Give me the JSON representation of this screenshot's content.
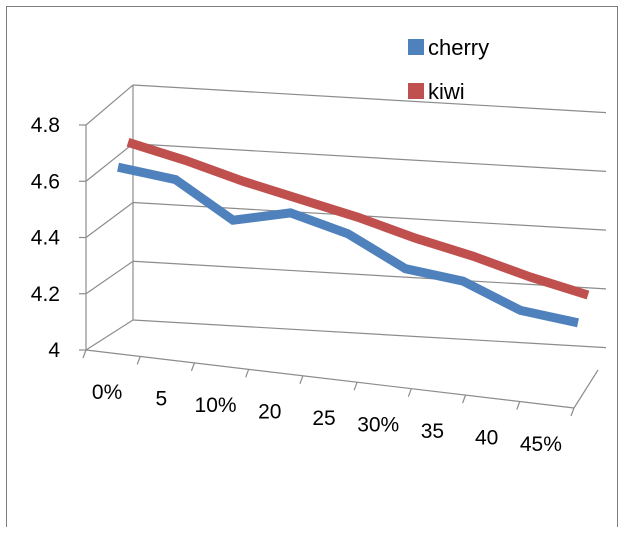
{
  "chart_data": {
    "type": "line",
    "style": "3d-line",
    "categories": [
      "0%",
      "5",
      "10%",
      "20",
      "25",
      "30%",
      "35",
      "40",
      "45%"
    ],
    "series": [
      {
        "name": "cherry",
        "color": "#4f81bd",
        "values": [
          4.65,
          4.62,
          4.49,
          4.53,
          4.47,
          4.36,
          4.33,
          4.24,
          4.21
        ]
      },
      {
        "name": "kiwi",
        "color": "#c0504d",
        "values": [
          4.71,
          4.66,
          4.6,
          4.55,
          4.5,
          4.44,
          4.39,
          4.33,
          4.28
        ]
      }
    ],
    "y_ticks": [
      "4",
      "4.2",
      "4.4",
      "4.6",
      "4.8"
    ],
    "ylim": [
      4,
      4.8
    ],
    "grid": true,
    "legend": "top-right",
    "title": "",
    "xlabel": "",
    "ylabel": ""
  }
}
